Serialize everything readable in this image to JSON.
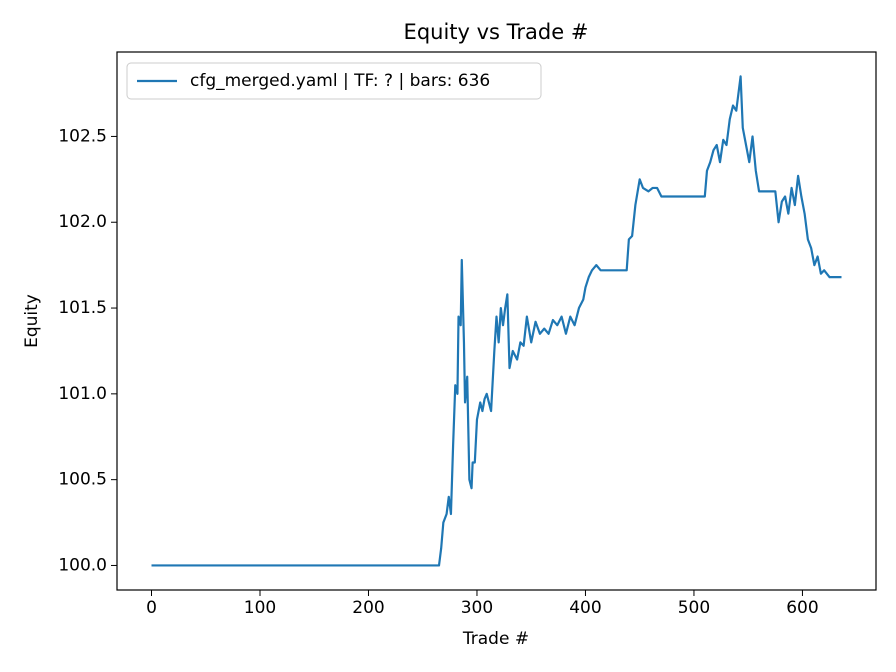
{
  "chart_data": {
    "type": "line",
    "title": "Equity vs Trade #",
    "xlabel": "Trade #",
    "ylabel": "Equity",
    "x": [
      0,
      265,
      267,
      269,
      272,
      274,
      276,
      278,
      280,
      282,
      283,
      285,
      286,
      288,
      289,
      291,
      293,
      295,
      296,
      298,
      300,
      303,
      305,
      307,
      309,
      311,
      313,
      316,
      318,
      320,
      322,
      324,
      326,
      328,
      330,
      333,
      337,
      340,
      343,
      346,
      350,
      354,
      358,
      362,
      366,
      370,
      374,
      378,
      382,
      386,
      390,
      394,
      398,
      400,
      403,
      406,
      410,
      414,
      438,
      440,
      443,
      446,
      450,
      453,
      458,
      462,
      466,
      470,
      510,
      512,
      515,
      518,
      521,
      524,
      527,
      530,
      533,
      536,
      539,
      541,
      543,
      545,
      548,
      551,
      554,
      557,
      560,
      575,
      578,
      581,
      584,
      587,
      590,
      593,
      596,
      599,
      602,
      605,
      608,
      611,
      614,
      617,
      620,
      625,
      636
    ],
    "series": [
      {
        "name": "cfg_merged.yaml | TF: ? | bars: 636",
        "color": "#1f77b4",
        "values": [
          100,
          100,
          100.1,
          100.25,
          100.3,
          100.4,
          100.3,
          100.7,
          101.05,
          101.0,
          101.45,
          101.4,
          101.78,
          101.3,
          100.95,
          101.1,
          100.5,
          100.45,
          100.6,
          100.6,
          100.85,
          100.95,
          100.9,
          100.97,
          101.0,
          100.95,
          100.9,
          101.25,
          101.45,
          101.3,
          101.5,
          101.4,
          101.5,
          101.58,
          101.15,
          101.25,
          101.2,
          101.3,
          101.28,
          101.45,
          101.3,
          101.42,
          101.35,
          101.38,
          101.35,
          101.43,
          101.4,
          101.45,
          101.35,
          101.45,
          101.4,
          101.5,
          101.55,
          101.62,
          101.68,
          101.72,
          101.75,
          101.72,
          101.72,
          101.9,
          101.92,
          102.1,
          102.25,
          102.2,
          102.18,
          102.2,
          102.2,
          102.15,
          102.15,
          102.3,
          102.35,
          102.42,
          102.45,
          102.35,
          102.48,
          102.45,
          102.6,
          102.68,
          102.65,
          102.75,
          102.85,
          102.55,
          102.45,
          102.35,
          102.5,
          102.3,
          102.18,
          102.18,
          102.0,
          102.12,
          102.15,
          102.05,
          102.2,
          102.1,
          102.27,
          102.15,
          102.05,
          101.9,
          101.85,
          101.75,
          101.8,
          101.7,
          101.72,
          101.68,
          101.68
        ]
      }
    ],
    "xlim": [
      -31.8,
      667.8
    ],
    "xticks": [
      0,
      100,
      200,
      300,
      400,
      500,
      600
    ],
    "ylim": [
      99.857,
      102.992
    ],
    "yticks": [
      {
        "value": 100,
        "label": "100.0"
      },
      {
        "value": 100.5,
        "label": "100.5"
      },
      {
        "value": 101,
        "label": "101.0"
      },
      {
        "value": 101.5,
        "label": "101.5"
      },
      {
        "value": 102,
        "label": "102.0"
      },
      {
        "value": 102.5,
        "label": "102.5"
      }
    ],
    "legend": "upper left",
    "grid": false
  }
}
